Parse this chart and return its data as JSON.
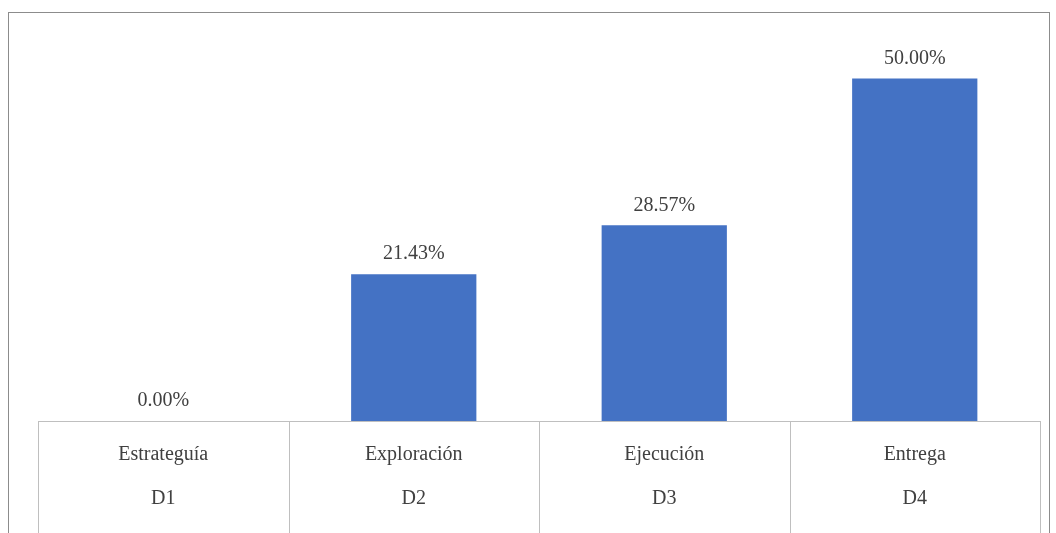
{
  "chart_data": {
    "type": "bar",
    "categories": [
      "Estrateguía\nD1",
      "Exploración\nD2",
      "Ejecución\nD3",
      "Entrega\nD4"
    ],
    "values": [
      0,
      21.43,
      28.57,
      50
    ],
    "value_labels": [
      "0.00%",
      "21.43%",
      "28.57%",
      "50.00%"
    ],
    "color": "#4472c4",
    "grid": false,
    "legend": false
  }
}
